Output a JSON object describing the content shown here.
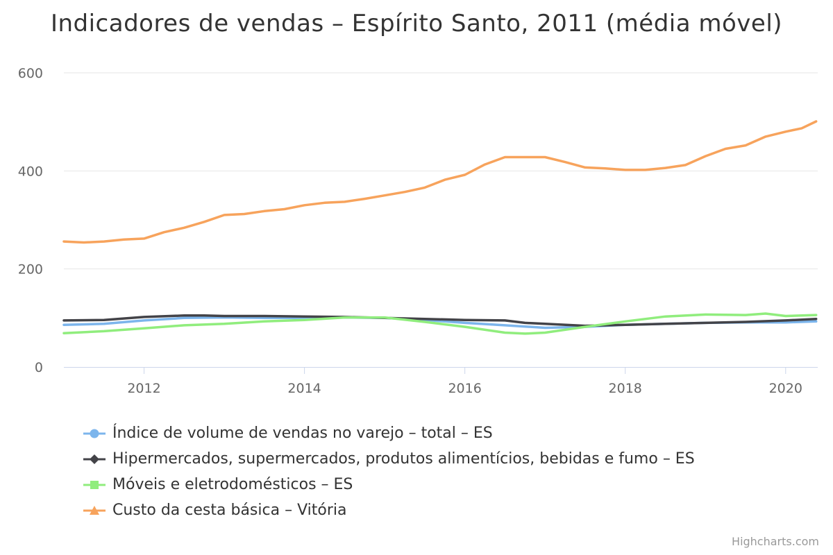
{
  "chart_data": {
    "type": "line",
    "title": "Indicadores de vendas – Espírito Santo, 2011 (média móvel)",
    "xlabel": "",
    "ylabel": "",
    "xlim": [
      2011,
      2020.4
    ],
    "ylim": [
      0,
      600
    ],
    "yticks": [
      0,
      200,
      400,
      600
    ],
    "xticks": [
      2012,
      2014,
      2016,
      2018,
      2020
    ],
    "grid": true,
    "legend_position": "bottom",
    "series": [
      {
        "name": "Índice de volume de vendas no varejo – total – ES",
        "color": "#7cb5ec",
        "marker": "circle",
        "x": [
          2011.0,
          2011.5,
          2012.0,
          2012.5,
          2013.0,
          2013.5,
          2014.0,
          2014.5,
          2015.0,
          2015.5,
          2016.0,
          2016.5,
          2017.0,
          2017.5,
          2018.0,
          2018.5,
          2019.0,
          2019.5,
          2020.0,
          2020.38
        ],
        "y": [
          86,
          88,
          95,
          100,
          101,
          100,
          100,
          101,
          100,
          96,
          90,
          85,
          80,
          82,
          86,
          88,
          90,
          91,
          91,
          93
        ]
      },
      {
        "name": "Hipermercados, supermercados, produtos alimentícios, bebidas e fumo – ES",
        "color": "#434348",
        "marker": "diamond",
        "x": [
          2011.0,
          2011.5,
          2012.0,
          2012.5,
          2012.75,
          2013.0,
          2013.5,
          2014.0,
          2014.5,
          2015.0,
          2015.5,
          2016.0,
          2016.5,
          2016.75,
          2017.0,
          2017.5,
          2018.0,
          2018.5,
          2019.0,
          2019.5,
          2020.0,
          2020.38
        ],
        "y": [
          95,
          96,
          102,
          105,
          105,
          104,
          104,
          103,
          102,
          100,
          98,
          96,
          95,
          90,
          88,
          84,
          86,
          88,
          90,
          92,
          95,
          98
        ]
      },
      {
        "name": "Móveis e eletrodomésticos – ES",
        "color": "#90ed7d",
        "marker": "square",
        "x": [
          2011.0,
          2011.5,
          2012.0,
          2012.5,
          2013.0,
          2013.5,
          2014.0,
          2014.5,
          2015.0,
          2015.5,
          2016.0,
          2016.5,
          2016.75,
          2017.0,
          2017.5,
          2018.0,
          2018.5,
          2019.0,
          2019.5,
          2019.75,
          2020.0,
          2020.38
        ],
        "y": [
          69,
          73,
          79,
          85,
          88,
          93,
          96,
          101,
          101,
          92,
          82,
          70,
          68,
          70,
          82,
          93,
          103,
          107,
          106,
          109,
          104,
          106
        ]
      },
      {
        "name": "Custo da cesta básica – Vitória",
        "color": "#f7a35c",
        "marker": "triangle",
        "x": [
          2011.0,
          2011.25,
          2011.5,
          2011.75,
          2012.0,
          2012.25,
          2012.5,
          2012.75,
          2013.0,
          2013.25,
          2013.5,
          2013.75,
          2014.0,
          2014.25,
          2014.5,
          2014.75,
          2015.0,
          2015.25,
          2015.5,
          2015.75,
          2016.0,
          2016.25,
          2016.5,
          2016.75,
          2017.0,
          2017.25,
          2017.5,
          2017.75,
          2018.0,
          2018.25,
          2018.5,
          2018.75,
          2019.0,
          2019.25,
          2019.5,
          2019.75,
          2020.0,
          2020.2,
          2020.38
        ],
        "y": [
          256,
          254,
          256,
          260,
          262,
          275,
          284,
          296,
          310,
          312,
          318,
          322,
          330,
          335,
          337,
          343,
          350,
          357,
          366,
          382,
          392,
          413,
          428,
          428,
          428,
          418,
          407,
          405,
          402,
          402,
          406,
          412,
          430,
          445,
          452,
          470,
          480,
          487,
          501
        ]
      }
    ],
    "credits": "Highcharts.com"
  }
}
